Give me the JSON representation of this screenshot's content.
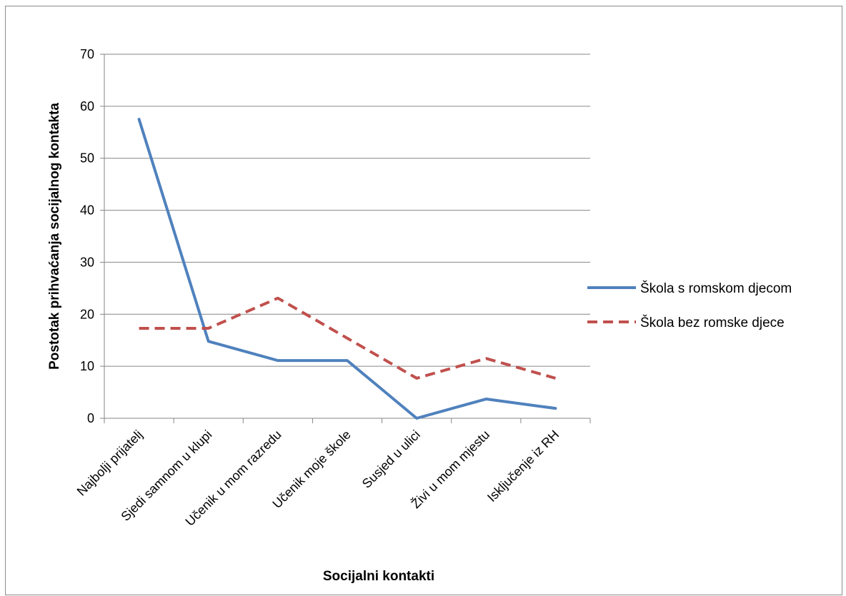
{
  "chart_data": {
    "type": "line",
    "title": "",
    "xlabel": "Socijalni kontakti",
    "ylabel": "Postotak prihvaćanja socijalnog kontakta",
    "categories": [
      "Najbolji prijatelj",
      "Sjedi samnom u klupi",
      "Učenik u mom razredu",
      "Učenik moje škole",
      "Susjed u ulici",
      "Živi u mom mjestu",
      "Isključenje iz RH"
    ],
    "ylim": [
      0,
      70
    ],
    "yticks": [
      0,
      10,
      20,
      30,
      40,
      50,
      60,
      70
    ],
    "grid": "horizontal",
    "legend_position": "right",
    "series": [
      {
        "name": "Škola s romskom djecom",
        "values": [
          57.5,
          14.8,
          11.1,
          11.1,
          0,
          3.7,
          1.9
        ],
        "color": "#4f81bd",
        "style": "solid"
      },
      {
        "name": "Škola bez romske djece",
        "values": [
          17.3,
          17.3,
          23.1,
          15.4,
          7.7,
          11.5,
          7.7
        ],
        "color": "#c0504d",
        "style": "dashed"
      }
    ]
  }
}
